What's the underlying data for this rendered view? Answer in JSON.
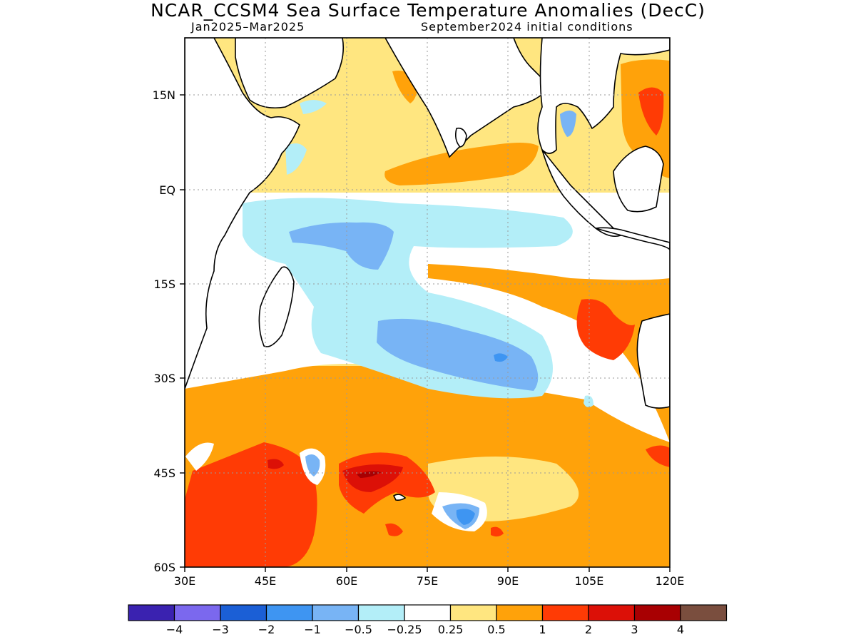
{
  "title": "NCAR_CCSM4 Sea Surface Temperature Anomalies (DecC)",
  "period": "Jan2025–Mar2025",
  "init": "September2024 initial conditions",
  "map": {
    "lat_ticks": [
      "15N",
      "EQ",
      "15S",
      "30S",
      "45S",
      "60S"
    ],
    "lon_ticks": [
      "30E",
      "45E",
      "60E",
      "75E",
      "90E",
      "105E",
      "120E"
    ],
    "lat_range": [
      -60,
      24
    ],
    "lon_range": [
      30,
      120
    ],
    "grid": "dotted"
  },
  "colorbar": {
    "colors": [
      "#3a22b0",
      "#7b68ee",
      "#1b5fd6",
      "#3e95f2",
      "#78b4f5",
      "#b3eef8",
      "#ffffff",
      "#ffe680",
      "#ffa20a",
      "#ff3b05",
      "#dc1007",
      "#a80002",
      "#7a4e3e"
    ],
    "labels": [
      "−4",
      "−3",
      "−2",
      "−1",
      "−0.5",
      "−0.25",
      "0.25",
      "0.5",
      "1",
      "2",
      "3",
      "4"
    ]
  }
}
